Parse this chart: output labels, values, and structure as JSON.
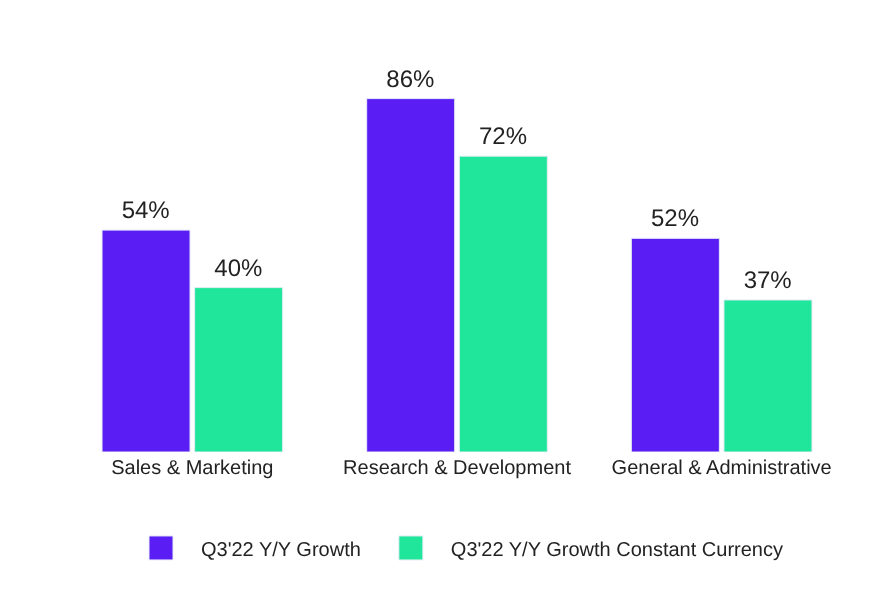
{
  "chart_data": {
    "type": "bar",
    "categories": [
      "Sales & Marketing",
      "Research & Development",
      "General & Administrative"
    ],
    "series": [
      {
        "name": "Q3'22 Y/Y Growth",
        "color": "#5a1ef5",
        "values": [
          54,
          86,
          52
        ],
        "value_labels": [
          "54%",
          "86%",
          "52%"
        ]
      },
      {
        "name": "Q3'22 Y/Y Growth Constant Currency",
        "color": "#1fe69b",
        "values": [
          40,
          72,
          37
        ],
        "value_labels": [
          "40%",
          "72%",
          "37%"
        ]
      }
    ],
    "legend": "bottom"
  }
}
